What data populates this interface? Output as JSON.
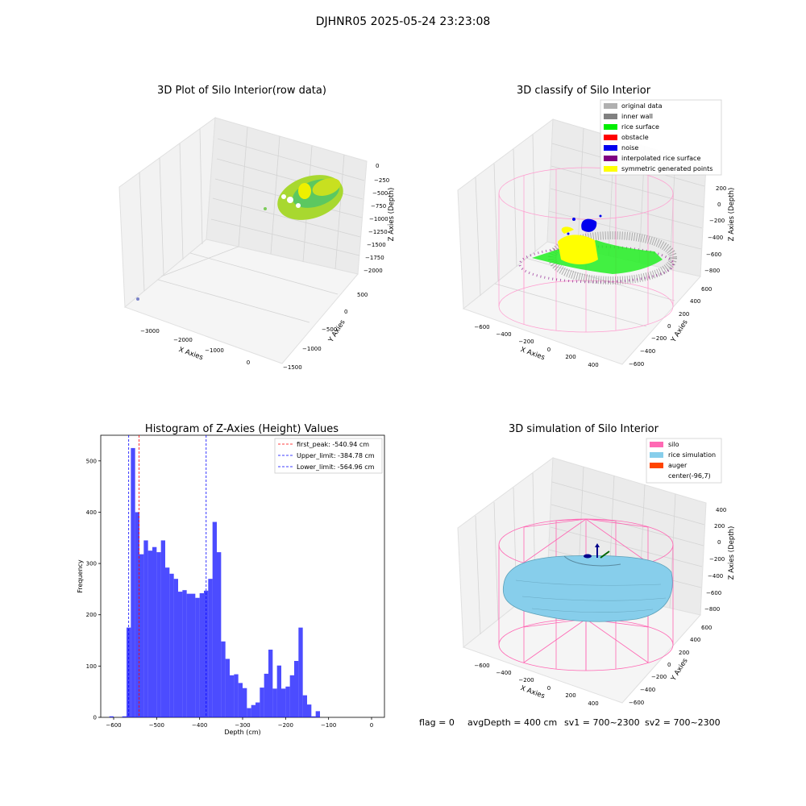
{
  "figure": {
    "suptitle": "DJHNR05 2025-05-24 23:23:08",
    "footer": {
      "flag": "flag = 0",
      "avg_depth": "avgDepth = 400 cm",
      "sv1": "sv1 = 700~2300",
      "sv2": "sv2 = 700~2300"
    }
  },
  "panels": {
    "raw": {
      "title": "3D Plot of Silo Interior(row data)",
      "xlabel": "X Axies",
      "ylabel": "Y Axies",
      "zlabel": "Z Axies (Depth)",
      "xticks": [
        "−3000",
        "−2000",
        "−1000",
        "0"
      ],
      "yticks": [
        "500",
        "0",
        "−500",
        "−1000",
        "−1500"
      ],
      "zticks": [
        "0",
        "−250",
        "−500",
        "−750",
        "−1000",
        "−1250",
        "−1500",
        "−1750",
        "−2000"
      ]
    },
    "classify": {
      "title": "3D classify of Silo Interior",
      "xlabel": "X Axies",
      "ylabel": "Y Axies",
      "zlabel": "Z Axies (Depth)",
      "xticks": [
        "−600",
        "−400",
        "−200",
        "0",
        "200",
        "400"
      ],
      "yticks": [
        "600",
        "400",
        "200",
        "0",
        "−200",
        "−400",
        "−600"
      ],
      "zticks": [
        "200",
        "0",
        "−200",
        "−400",
        "−600",
        "−800"
      ],
      "legend": [
        {
          "label": "original data",
          "color": "#b0b0b0"
        },
        {
          "label": "inner wall",
          "color": "#808080"
        },
        {
          "label": "rice surface",
          "color": "#00ee00"
        },
        {
          "label": "obstacle",
          "color": "#ff0000"
        },
        {
          "label": "noise",
          "color": "#0000ee"
        },
        {
          "label": "interpolated rice surface",
          "color": "#800080"
        },
        {
          "label": "symmetric generated points",
          "color": "#ffff00"
        }
      ]
    },
    "simulation": {
      "title": "3D simulation of Silo Interior",
      "xlabel": "X Axies",
      "ylabel": "Y Axies",
      "zlabel": "Z Axies (Depth)",
      "xticks": [
        "−600",
        "−400",
        "−200",
        "0",
        "200",
        "400"
      ],
      "yticks": [
        "600",
        "400",
        "200",
        "0",
        "−200",
        "−400",
        "−600"
      ],
      "zticks": [
        "400",
        "200",
        "0",
        "−200",
        "−400",
        "−600",
        "−800"
      ],
      "legend": [
        {
          "label": "silo",
          "color": "#ff69b4"
        },
        {
          "label": "rice simulation",
          "color": "#87ceeb"
        },
        {
          "label": "auger",
          "color": "#ff4500"
        },
        {
          "label": "center(-96,7)",
          "color": ""
        }
      ]
    }
  },
  "chart_data": {
    "type": "bar",
    "title": "Histogram of Z-Axies (Height) Values",
    "xlabel": "Depth (cm)",
    "ylabel": "Frequency",
    "xlim": [
      -630,
      30
    ],
    "ylim": [
      0,
      550
    ],
    "xticks": [
      -600,
      -500,
      -400,
      -300,
      -200,
      -100,
      0
    ],
    "yticks": [
      0,
      100,
      200,
      300,
      400,
      500
    ],
    "bin_start": -610,
    "bin_width": 10,
    "values": [
      2,
      0,
      0,
      2,
      175,
      525,
      400,
      318,
      345,
      325,
      332,
      322,
      345,
      292,
      280,
      270,
      245,
      248,
      241,
      241,
      233,
      242,
      247,
      270,
      381,
      322,
      148,
      114,
      82,
      84,
      67,
      57,
      18,
      24,
      29,
      58,
      85,
      132,
      56,
      101,
      56,
      60,
      82,
      110,
      175,
      43,
      25,
      2,
      12
    ],
    "bar_color": "#0000ff",
    "vlines": [
      {
        "label": "first_peak: -540.94 cm",
        "x": -540.94,
        "color": "#ff0000"
      },
      {
        "label": "Upper_limit: -384.78 cm",
        "x": -384.78,
        "color": "#0000ff"
      },
      {
        "label": "Lower_limit: -564.96 cm",
        "x": -564.96,
        "color": "#0000ff"
      }
    ],
    "legend_position": "top-right",
    "xtick_labels": [
      "−600",
      "−500",
      "−400",
      "−300",
      "−200",
      "−100",
      "0"
    ],
    "ytick_labels": [
      "0",
      "100",
      "200",
      "300",
      "400",
      "500"
    ]
  }
}
